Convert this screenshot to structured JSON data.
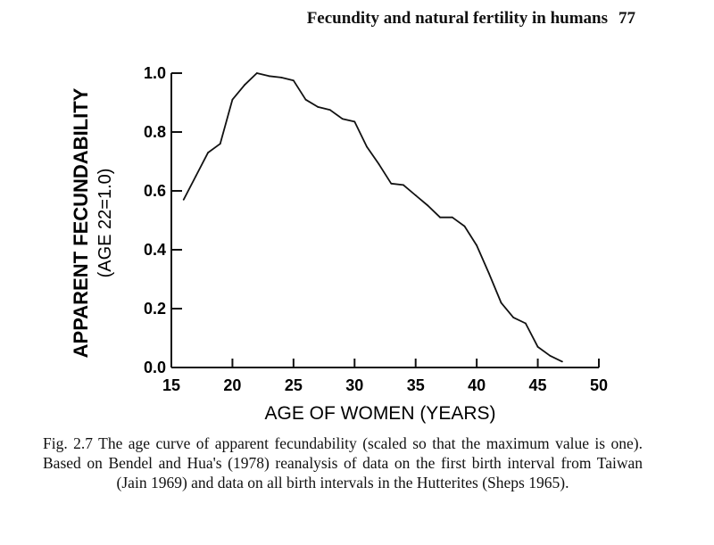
{
  "running_head": {
    "title": "Fecundity and natural fertility in humans",
    "page_number": "77"
  },
  "chart_data": {
    "type": "line",
    "xlabel": "AGE OF WOMEN (YEARS)",
    "ylabel_line1": "APPARENT FECUNDABILITY",
    "ylabel_line2": "(AGE 22=1.0)",
    "xlim": [
      15,
      50
    ],
    "ylim": [
      0,
      1.0
    ],
    "x_ticks": [
      15,
      20,
      25,
      30,
      35,
      40,
      45,
      50
    ],
    "y_ticks": [
      "0.0",
      "0.2",
      "0.4",
      "0.6",
      "0.8",
      "1.0"
    ],
    "grid": false,
    "series": [
      {
        "x": [
          16,
          17,
          18,
          19,
          20,
          21,
          22,
          23,
          24,
          25,
          26,
          27,
          28,
          29,
          30,
          31,
          32,
          33,
          34,
          35,
          36,
          37,
          38,
          39,
          40,
          41,
          42,
          43,
          44,
          45,
          46,
          47
        ],
        "y": [
          0.57,
          0.65,
          0.73,
          0.76,
          0.91,
          0.96,
          1.0,
          0.99,
          0.985,
          0.975,
          0.91,
          0.885,
          0.875,
          0.845,
          0.835,
          0.75,
          0.69,
          0.625,
          0.62,
          0.585,
          0.55,
          0.51,
          0.51,
          0.48,
          0.415,
          0.32,
          0.22,
          0.17,
          0.15,
          0.07,
          0.04,
          0.02
        ]
      }
    ]
  },
  "caption": "Fig. 2.7  The age curve of apparent fecundability (scaled so that the maximum value is one). Based on Bendel and Hua's (1978) reanalysis of data on the first birth interval from Taiwan (Jain 1969) and data on all birth intervals in the Hutterites (Sheps 1965)."
}
